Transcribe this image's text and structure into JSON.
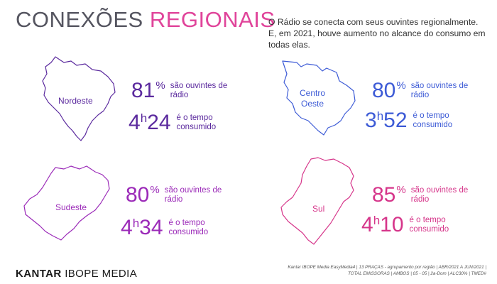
{
  "header": {
    "title_part1": "CONEXÕES",
    "title_part2": "REGIONAIS",
    "intro": "O Rádio se conecta com seus ouvintes regionalmente. E, em 2021, houve aumento no alcance do consumo em todas elas."
  },
  "regions": {
    "nordeste": {
      "name": "Nordeste",
      "pct": "81",
      "pct_sign": "%",
      "pct_desc": "são ouvintes de rádio",
      "hours": "4",
      "h": "h",
      "minutes": "24",
      "time_desc": "é o tempo consumido",
      "color": "#5b2a9e"
    },
    "centro_oeste": {
      "name_line1": "Centro",
      "name_line2": "Oeste",
      "pct": "80",
      "pct_sign": "%",
      "pct_desc": "são ouvintes de rádio",
      "hours": "3",
      "h": "h",
      "minutes": "52",
      "time_desc": "é o tempo consumido",
      "color": "#3d5bd6"
    },
    "sudeste": {
      "name": "Sudeste",
      "pct": "80",
      "pct_sign": "%",
      "pct_desc": "são ouvintes de rádio",
      "hours": "4",
      "h": "h",
      "minutes": "34",
      "time_desc": "é o tempo consumido",
      "color": "#9b2ab8"
    },
    "sul": {
      "name": "Sul",
      "pct": "85",
      "pct_sign": "%",
      "pct_desc": "são ouvintes de rádio",
      "hours": "4",
      "h": "h",
      "minutes": "10",
      "time_desc": "é o tempo consumido",
      "color": "#d6358a"
    }
  },
  "footer": {
    "logo_part1": "KANTAR",
    "logo_part2": "IBOPE MEDIA",
    "source": "Kantar IBOPE Media EasyMedia4 | 13 PRAÇAS - agrupamento por região | ABR/2021 A JUN/2021 | TOTAL EMISSORAS | AMBOS | 05 - 05 | 2a-Dom | ALC30% | TMED#"
  }
}
